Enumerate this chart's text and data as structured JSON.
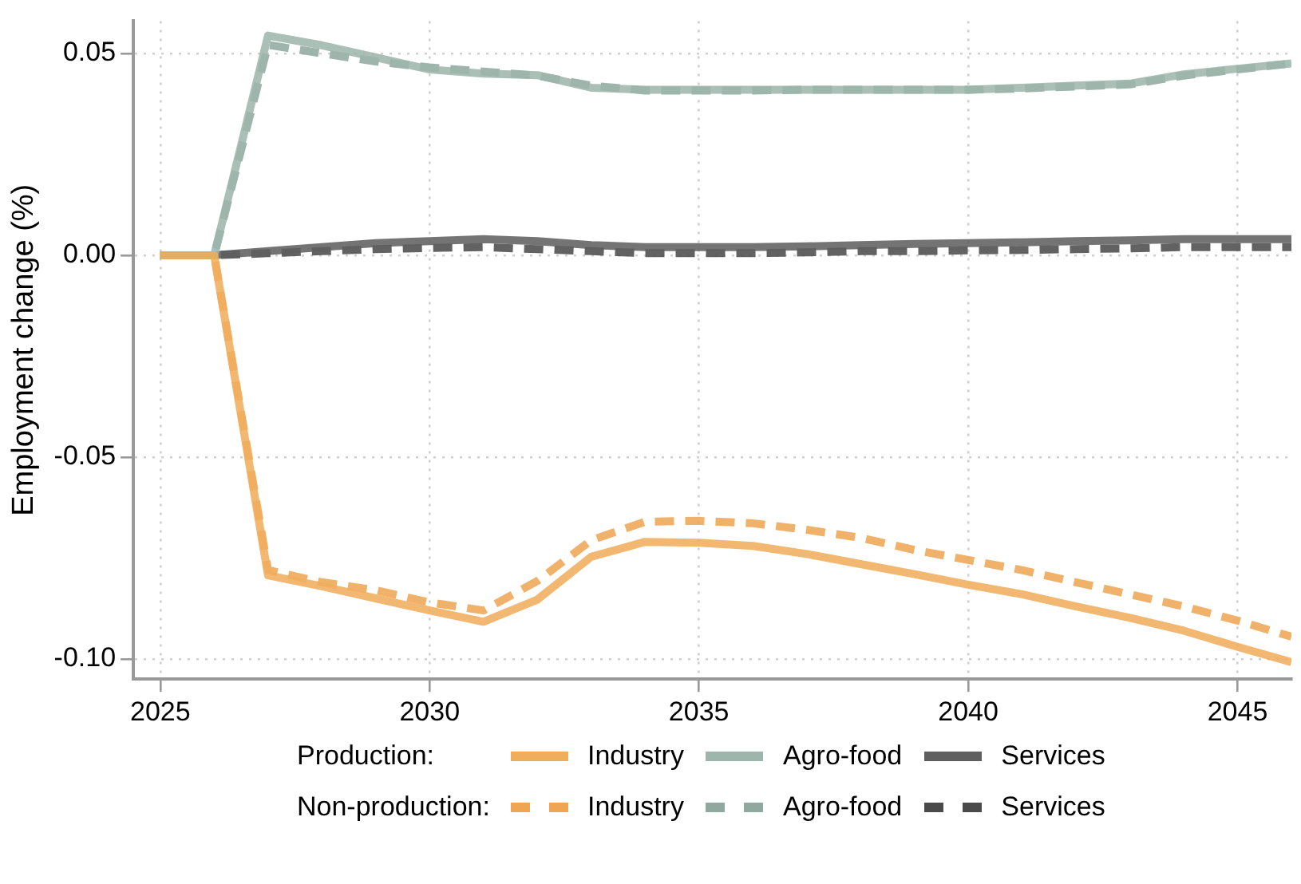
{
  "chart_data": {
    "type": "line",
    "ylabel": "Employment change (%)",
    "x": [
      2025,
      2026,
      2027,
      2028,
      2029,
      2030,
      2031,
      2032,
      2033,
      2034,
      2035,
      2036,
      2037,
      2038,
      2039,
      2040,
      2041,
      2042,
      2043,
      2044,
      2045,
      2046
    ],
    "xlim": [
      2024.5,
      2046
    ],
    "xticks": [
      2025,
      2030,
      2035,
      2040,
      2045
    ],
    "ylim": [
      -0.105,
      0.058
    ],
    "yticks": [
      {
        "value": 0.05,
        "label": "0.05"
      },
      {
        "value": 0,
        "label": "0.00"
      },
      {
        "value": -0.05,
        "label": "-0.05"
      },
      {
        "value": -0.1,
        "label": "-0.10"
      }
    ],
    "grid": true,
    "legend": "bottom",
    "annotations": [
      "Production:",
      "Non-production:"
    ],
    "series": [
      {
        "name": "Industry",
        "color": "#f0ad5c",
        "line_style": "solid",
        "values": [
          0,
          0,
          -0.0793,
          -0.082,
          -0.085,
          -0.088,
          -0.0908,
          -0.0853,
          -0.0747,
          -0.071,
          -0.0712,
          -0.072,
          -0.074,
          -0.0765,
          -0.079,
          -0.0816,
          -0.084,
          -0.087,
          -0.0898,
          -0.093,
          -0.097,
          -0.1008
        ]
      },
      {
        "name": "Agro-food",
        "color": "#9db5ab",
        "line_style": "solid",
        "values": [
          0,
          0,
          0.0544,
          0.052,
          0.049,
          0.046,
          0.045,
          0.0446,
          0.0415,
          0.041,
          0.041,
          0.041,
          0.041,
          0.041,
          0.041,
          0.041,
          0.0415,
          0.042,
          0.0425,
          0.0448,
          0.0462,
          0.0475
        ]
      },
      {
        "name": "Services",
        "color": "#5f5f5f",
        "line_style": "solid",
        "values": [
          0,
          0,
          0.001,
          0.002,
          0.003,
          0.0035,
          0.004,
          0.0035,
          0.0025,
          0.002,
          0.002,
          0.002,
          0.0022,
          0.0025,
          0.0028,
          0.003,
          0.0032,
          0.0035,
          0.0037,
          0.004,
          0.004,
          0.004
        ]
      },
      {
        "name": "Industry",
        "color": "#eea653",
        "line_style": "dashed",
        "values": [
          0,
          0,
          -0.078,
          -0.081,
          -0.083,
          -0.086,
          -0.088,
          -0.0807,
          -0.0706,
          -0.066,
          -0.0658,
          -0.0664,
          -0.068,
          -0.07,
          -0.073,
          -0.0755,
          -0.078,
          -0.081,
          -0.084,
          -0.087,
          -0.0905,
          -0.0945
        ]
      },
      {
        "name": "Agro-food",
        "color": "#8fa99f",
        "line_style": "dashed",
        "values": [
          0,
          0,
          0.0521,
          0.05,
          0.048,
          0.0465,
          0.0455,
          0.0445,
          0.042,
          0.0408,
          0.0408,
          0.0408,
          0.041,
          0.041,
          0.041,
          0.041,
          0.0413,
          0.0418,
          0.0423,
          0.0445,
          0.046,
          0.0475
        ]
      },
      {
        "name": "Services",
        "color": "#4a4a4a",
        "line_style": "dashed",
        "values": [
          0,
          0,
          0.0005,
          0.001,
          0.0015,
          0.0018,
          0.002,
          0.0015,
          0.001,
          0.0005,
          0.0005,
          0.0005,
          0.0007,
          0.001,
          0.001,
          0.0012,
          0.0013,
          0.0015,
          0.0017,
          0.002,
          0.002,
          0.002
        ]
      }
    ]
  }
}
